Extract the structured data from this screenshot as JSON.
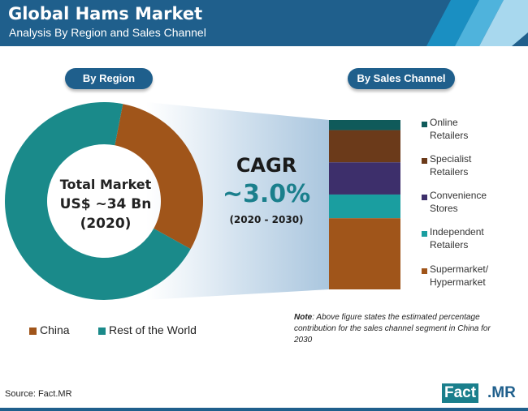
{
  "header": {
    "title": "Global Hams Market",
    "subtitle": "Analysis By Region and Sales Channel"
  },
  "colors": {
    "brand_blue": "#1f5f8c",
    "china": "#a0551a",
    "rest_of_world": "#1a8a8a",
    "online": "#0f5a5a",
    "specialist": "#6b3a1a",
    "convenience": "#3d2f6b",
    "independent": "#1a9ea0",
    "supermarket": "#a0551a"
  },
  "region_pill": "By Region",
  "channel_pill": "By Sales Channel",
  "donut_center": {
    "line1": "Total Market",
    "line2": "US$ ~34 Bn",
    "line3": "(2020)"
  },
  "cagr": {
    "label": "CAGR",
    "value": "~3.0%",
    "period": "(2020 - 2030)"
  },
  "chart_data": [
    {
      "type": "pie",
      "variant": "donut",
      "categories": [
        "China",
        "Rest of the World"
      ],
      "values": [
        30,
        70
      ]
    },
    {
      "type": "bar",
      "variant": "stacked-100",
      "categories": [
        "Online Retailers",
        "Specialist Retailers",
        "Convenience Stores",
        "Independent Retailers",
        "Supermarket/ Hypermarket"
      ],
      "values": [
        6,
        19,
        19,
        14,
        42
      ]
    }
  ],
  "channel_legend": [
    {
      "line1": "Online",
      "line2": "Retailers"
    },
    {
      "line1": "Specialist",
      "line2": "Retailers"
    },
    {
      "line1": "Convenience",
      "line2": "Stores"
    },
    {
      "line1": "Independent",
      "line2": "Retailers"
    },
    {
      "line1": "Supermarket/",
      "line2": "Hypermarket"
    }
  ],
  "region_legend": [
    "China",
    "Rest of the World"
  ],
  "note": {
    "bold": "Note",
    "text": ": Above figure states the estimated percentage contribution for the sales channel segment in China for 2030"
  },
  "source": "Source: Fact.MR",
  "logo": {
    "part1": "Fact",
    "part2": ".MR"
  }
}
